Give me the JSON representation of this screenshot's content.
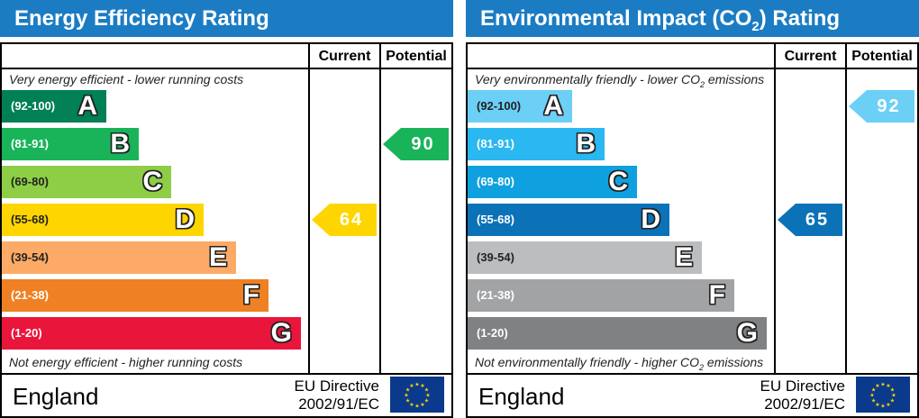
{
  "chart_data": [
    {
      "type": "bar",
      "title": "Energy Efficiency Rating",
      "columns": [
        "Current",
        "Potential"
      ],
      "top_note": "Very energy efficient - lower running costs",
      "bottom_note": "Not energy efficient - higher running costs",
      "bands": [
        {
          "range": "(92-100)",
          "letter": "A",
          "color": "#008054"
        },
        {
          "range": "(81-91)",
          "letter": "B",
          "color": "#19b459"
        },
        {
          "range": "(69-80)",
          "letter": "C",
          "color": "#8dce46"
        },
        {
          "range": "(55-68)",
          "letter": "D",
          "color": "#ffd500"
        },
        {
          "range": "(39-54)",
          "letter": "E",
          "color": "#fcaa65"
        },
        {
          "range": "(21-38)",
          "letter": "F",
          "color": "#ef8023"
        },
        {
          "range": "(1-20)",
          "letter": "G",
          "color": "#e9153b"
        }
      ],
      "current": {
        "value": "64",
        "band": "D",
        "color": "#ffd500"
      },
      "potential": {
        "value": "90",
        "band": "B",
        "color": "#19b459"
      },
      "country": "England",
      "directive_line1": "EU Directive",
      "directive_line2": "2002/91/EC"
    },
    {
      "type": "bar",
      "title_pre": "Environmental Impact (CO",
      "title_sub": "2",
      "title_post": ") Rating",
      "columns": [
        "Current",
        "Potential"
      ],
      "top_note_pre": "Very environmentally friendly - lower CO",
      "top_note_sub": "2",
      "top_note_post": " emissions",
      "bottom_note_pre": "Not environmentally friendly - higher CO",
      "bottom_note_sub": "2",
      "bottom_note_post": " emissions",
      "bands": [
        {
          "range": "(92-100)",
          "letter": "A",
          "color": "#6ccff6"
        },
        {
          "range": "(81-91)",
          "letter": "B",
          "color": "#2bb7f0"
        },
        {
          "range": "(69-80)",
          "letter": "C",
          "color": "#0fa1df"
        },
        {
          "range": "(55-68)",
          "letter": "D",
          "color": "#0b72b8"
        },
        {
          "range": "(39-54)",
          "letter": "E",
          "color": "#bcbdbf"
        },
        {
          "range": "(21-38)",
          "letter": "F",
          "color": "#a2a3a5"
        },
        {
          "range": "(1-20)",
          "letter": "G",
          "color": "#808183"
        }
      ],
      "current": {
        "value": "65",
        "band": "D",
        "color": "#0b72b8"
      },
      "potential": {
        "value": "92",
        "band": "A",
        "color": "#6ccff6"
      },
      "country": "England",
      "directive_line1": "EU Directive",
      "directive_line2": "2002/91/EC"
    }
  ]
}
